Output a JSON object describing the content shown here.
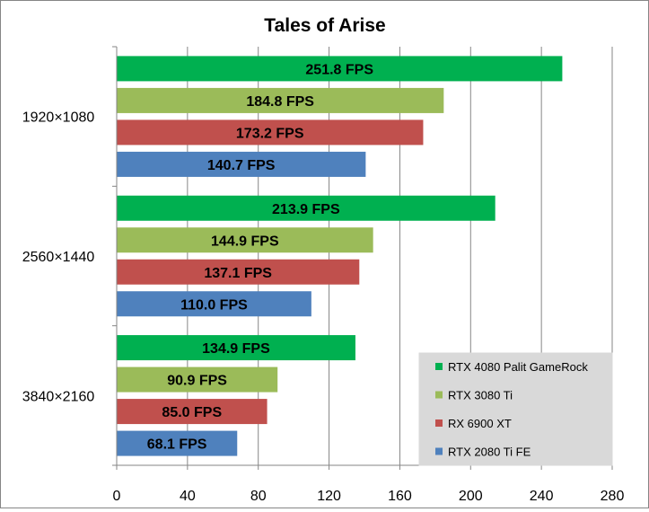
{
  "chart_data": {
    "type": "bar",
    "orientation": "horizontal",
    "title": "Tales of Arise",
    "categories": [
      "1920×1080",
      "2560×1440",
      "3840×2160"
    ],
    "series": [
      {
        "name": "RTX 4080 Palit GameRock",
        "color": "#00b050",
        "values": [
          251.8,
          213.9,
          134.9
        ],
        "labels": [
          "251.8 FPS",
          "213.9 FPS",
          "134.9 FPS"
        ]
      },
      {
        "name": "RTX 3080 Ti",
        "color": "#9bbb59",
        "values": [
          184.8,
          144.9,
          90.9
        ],
        "labels": [
          "184.8 FPS",
          "144.9 FPS",
          "90.9 FPS"
        ]
      },
      {
        "name": "RX 6900 XT",
        "color": "#c0504d",
        "values": [
          173.2,
          137.1,
          85.0
        ],
        "labels": [
          "173.2 FPS",
          "137.1 FPS",
          "85.0 FPS"
        ]
      },
      {
        "name": "RTX 2080 Ti FE",
        "color": "#4f81bd",
        "values": [
          140.7,
          110.0,
          68.1
        ],
        "labels": [
          "140.7 FPS",
          "110.0 FPS",
          "68.1 FPS"
        ]
      }
    ],
    "xlim": [
      0,
      280
    ],
    "xticks": [
      "0",
      "40",
      "80",
      "120",
      "160",
      "200",
      "240",
      "280"
    ],
    "grid": true,
    "legend": "bottom-right"
  }
}
